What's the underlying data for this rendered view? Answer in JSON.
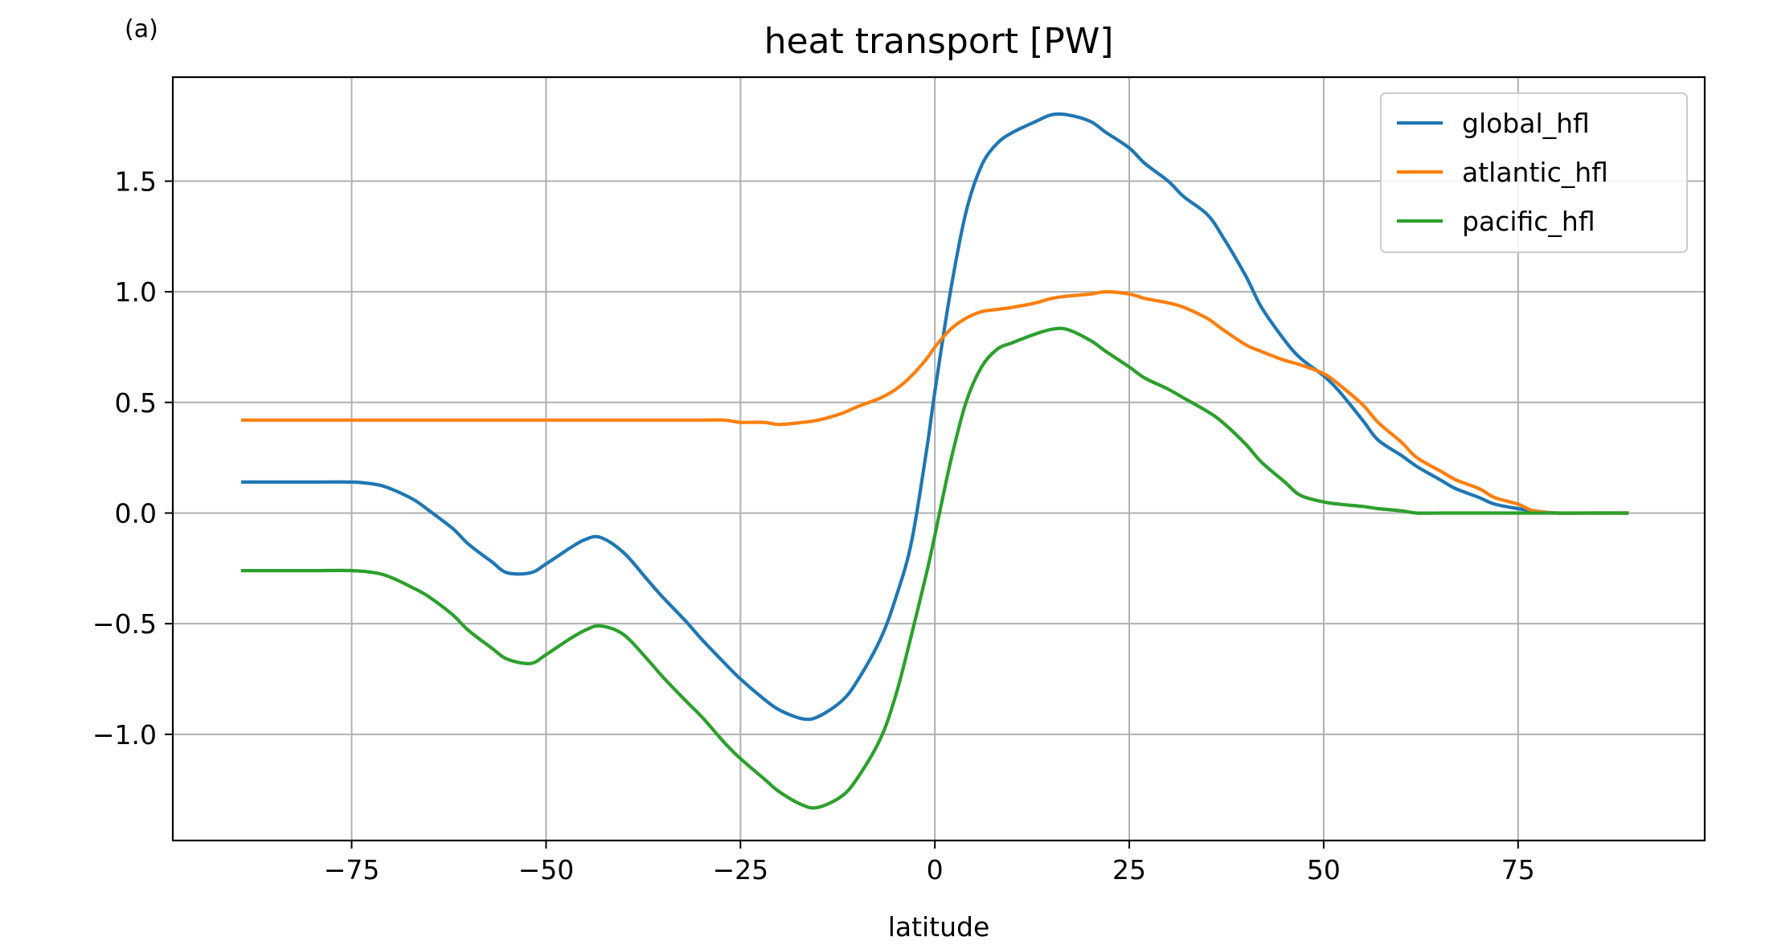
{
  "panel_label": "(a)",
  "chart_data": {
    "type": "line",
    "title": "heat transport [PW]",
    "xlabel": "latitude",
    "ylabel": "",
    "xlim": [
      -98,
      99
    ],
    "ylim": [
      -1.48,
      1.97
    ],
    "xticks": [
      -75,
      -50,
      -25,
      0,
      25,
      50,
      75
    ],
    "xtick_labels": [
      "−75",
      "−50",
      "−25",
      "0",
      "25",
      "50",
      "75"
    ],
    "yticks": [
      -1.0,
      -0.5,
      0.0,
      0.5,
      1.0,
      1.5
    ],
    "ytick_labels": [
      "−1.0",
      "−0.5",
      "0.0",
      "0.5",
      "1.0",
      "1.5"
    ],
    "grid": true,
    "legend_position": "top-right",
    "x": [
      -89,
      -85,
      -80,
      -75,
      -72,
      -70,
      -67,
      -65,
      -62,
      -60,
      -57,
      -55,
      -52,
      -50,
      -47,
      -45,
      -43,
      -40,
      -37,
      -35,
      -32,
      -30,
      -27,
      -25,
      -22,
      -20,
      -17,
      -15,
      -12,
      -10,
      -7,
      -5,
      -3,
      -1,
      0,
      2,
      4,
      6,
      8,
      10,
      13,
      15,
      17,
      20,
      22,
      25,
      27,
      30,
      32,
      35,
      37,
      40,
      42,
      45,
      47,
      50,
      52,
      55,
      57,
      60,
      62,
      65,
      67,
      70,
      72,
      75,
      77,
      80,
      85,
      89
    ],
    "series": [
      {
        "name": "global_hfl",
        "color": "#1f77b4",
        "values": [
          0.14,
          0.14,
          0.14,
          0.14,
          0.13,
          0.11,
          0.06,
          0.01,
          -0.07,
          -0.14,
          -0.22,
          -0.27,
          -0.27,
          -0.23,
          -0.16,
          -0.12,
          -0.11,
          -0.18,
          -0.3,
          -0.38,
          -0.49,
          -0.57,
          -0.68,
          -0.75,
          -0.84,
          -0.89,
          -0.93,
          -0.92,
          -0.85,
          -0.76,
          -0.57,
          -0.38,
          -0.13,
          0.3,
          0.55,
          1.0,
          1.36,
          1.57,
          1.67,
          1.72,
          1.77,
          1.8,
          1.8,
          1.77,
          1.72,
          1.65,
          1.58,
          1.5,
          1.43,
          1.35,
          1.25,
          1.07,
          0.93,
          0.78,
          0.7,
          0.62,
          0.55,
          0.42,
          0.33,
          0.26,
          0.21,
          0.15,
          0.11,
          0.07,
          0.04,
          0.02,
          0.01,
          0.0,
          0.0,
          0.0
        ]
      },
      {
        "name": "atlantic_hfl",
        "color": "#ff7f0e",
        "values": [
          0.42,
          0.42,
          0.42,
          0.42,
          0.42,
          0.42,
          0.42,
          0.42,
          0.42,
          0.42,
          0.42,
          0.42,
          0.42,
          0.42,
          0.42,
          0.42,
          0.42,
          0.42,
          0.42,
          0.42,
          0.42,
          0.42,
          0.42,
          0.41,
          0.41,
          0.4,
          0.41,
          0.42,
          0.45,
          0.48,
          0.52,
          0.56,
          0.62,
          0.7,
          0.75,
          0.83,
          0.88,
          0.91,
          0.92,
          0.93,
          0.95,
          0.97,
          0.98,
          0.99,
          1.0,
          0.99,
          0.97,
          0.95,
          0.93,
          0.88,
          0.83,
          0.76,
          0.73,
          0.69,
          0.67,
          0.63,
          0.58,
          0.49,
          0.41,
          0.32,
          0.25,
          0.19,
          0.15,
          0.11,
          0.07,
          0.04,
          0.01,
          0.0,
          0.0,
          0.0
        ]
      },
      {
        "name": "pacific_hfl",
        "color": "#2ca02c",
        "values": [
          -0.26,
          -0.26,
          -0.26,
          -0.26,
          -0.27,
          -0.29,
          -0.34,
          -0.38,
          -0.46,
          -0.53,
          -0.61,
          -0.66,
          -0.68,
          -0.64,
          -0.57,
          -0.53,
          -0.51,
          -0.55,
          -0.66,
          -0.74,
          -0.85,
          -0.92,
          -1.04,
          -1.11,
          -1.2,
          -1.26,
          -1.32,
          -1.33,
          -1.28,
          -1.2,
          -1.02,
          -0.82,
          -0.55,
          -0.26,
          -0.1,
          0.23,
          0.5,
          0.66,
          0.74,
          0.77,
          0.81,
          0.83,
          0.83,
          0.78,
          0.73,
          0.66,
          0.61,
          0.56,
          0.52,
          0.46,
          0.41,
          0.31,
          0.23,
          0.14,
          0.08,
          0.05,
          0.04,
          0.03,
          0.02,
          0.01,
          0.0,
          0.0,
          0.0,
          0.0,
          0.0,
          0.0,
          0.0,
          0.0,
          0.0,
          0.0
        ]
      }
    ]
  }
}
